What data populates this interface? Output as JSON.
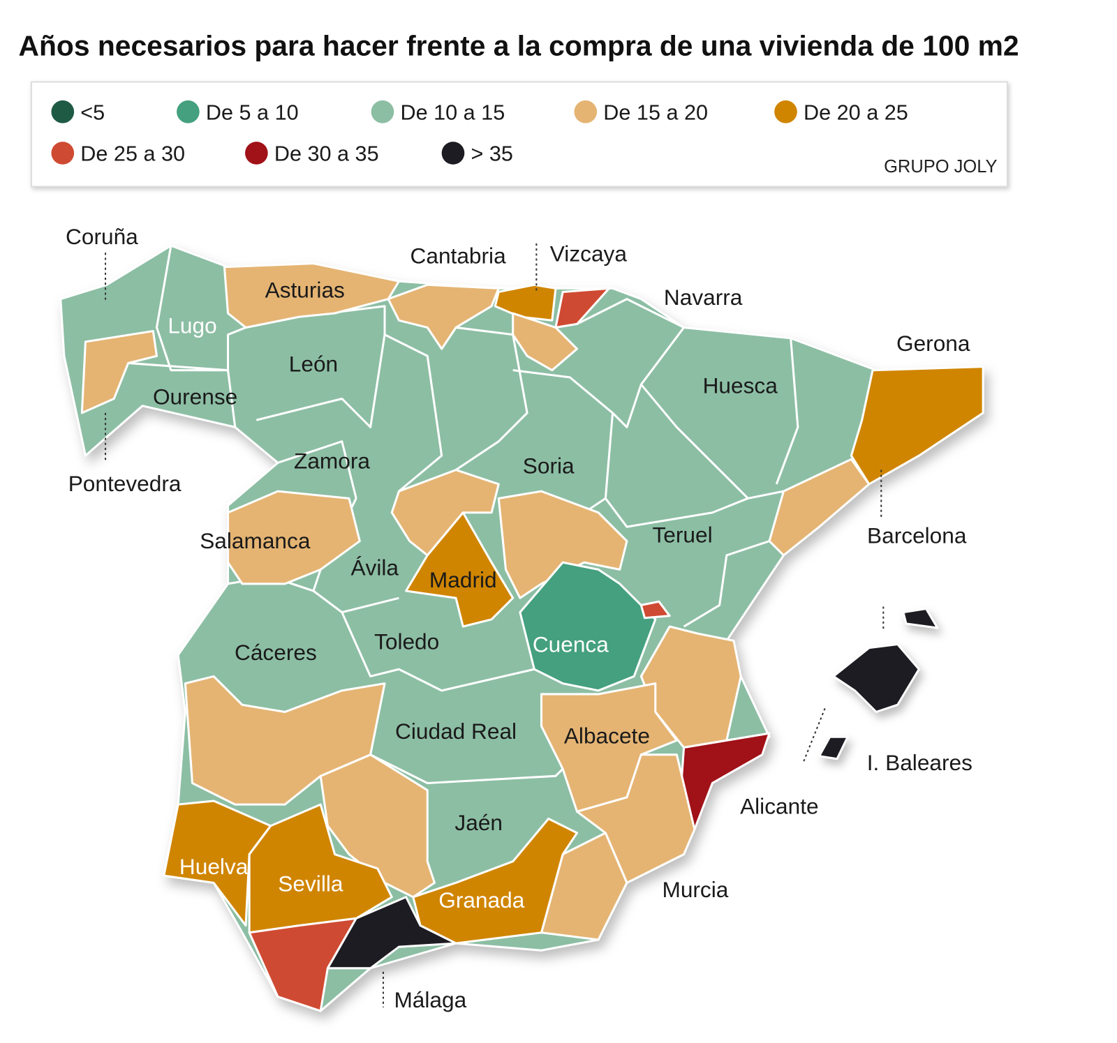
{
  "title": "Años necesarios para hacer frente a la compra de una vivienda de 100 m2",
  "legend": [
    {
      "label": "<5",
      "color": "#1f5a45"
    },
    {
      "label": "De 5 a 10",
      "color": "#44a07f"
    },
    {
      "label": "De 10 a 15",
      "color": "#8cbea4"
    },
    {
      "label": "De 15 a 20",
      "color": "#e5b473"
    },
    {
      "label": "De 20 a 25",
      "color": "#d08500"
    },
    {
      "label": "De 25 a 30",
      "color": "#cf4a32"
    },
    {
      "label": "De 30 a 35",
      "color": "#a01118"
    },
    {
      "label": "> 35",
      "color": "#1c1c22"
    }
  ],
  "source": "GRUPO JOLY",
  "labels": [
    "Coruña",
    "Lugo",
    "Ourense",
    "Pontevedra",
    "Asturias",
    "León",
    "Zamora",
    "Salamanca",
    "Ávila",
    "Cantabria",
    "Vizcaya",
    "Navarra",
    "Huesca",
    "Gerona",
    "Barcelona",
    "Soria",
    "Teruel",
    "Madrid",
    "Toledo",
    "Cáceres",
    "Cuenca",
    "Ciudad Real",
    "Albacete",
    "Alicante",
    "I. Baleares",
    "Jaén",
    "Huelva",
    "Sevilla",
    "Granada",
    "Murcia",
    "Málaga"
  ]
}
